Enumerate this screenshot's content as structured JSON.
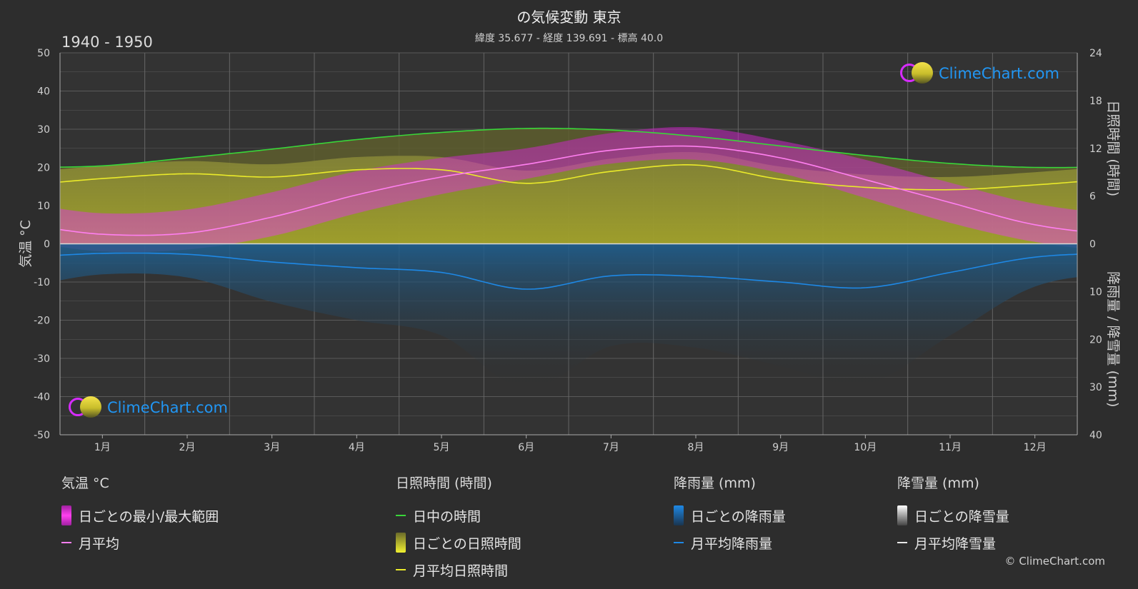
{
  "title": "の気候変動 東京",
  "subtitle": "緯度 35.677 - 経度 139.691 - 標高 40.0",
  "period": "1940 - 1950",
  "logo_text": "ClimeChart.com",
  "copyright": "© ClimeChart.com",
  "colors": {
    "background": "#2d2d2d",
    "temp_range": "#d633c8",
    "temp_avg": "#ff7ff0",
    "daylight": "#39d639",
    "sunshine_fill": "#a6a632",
    "sunshine_avg": "#eaea2a",
    "rain": "#1e88e5",
    "snow": "#dddddd"
  },
  "chart_data": {
    "type": "line",
    "x_categories": [
      "1月",
      "2月",
      "3月",
      "4月",
      "5月",
      "6月",
      "7月",
      "8月",
      "9月",
      "10月",
      "11月",
      "12月"
    ],
    "left_axis": {
      "label": "気温 °C",
      "range": [
        -50,
        50
      ],
      "ticks": [
        50,
        40,
        30,
        20,
        10,
        0,
        -10,
        -20,
        -30,
        -40,
        -50
      ]
    },
    "right_axis_top": {
      "label": "日照時間 (時間)",
      "range": [
        0,
        24
      ],
      "ticks": [
        24,
        18,
        12,
        6,
        0
      ]
    },
    "right_axis_bottom": {
      "label": "降雨量 / 降雪量 (mm)",
      "range": [
        0,
        40
      ],
      "ticks": [
        10,
        20,
        30,
        40
      ]
    },
    "grid": true,
    "series": [
      {
        "name": "月平均",
        "unit": "°C",
        "values": [
          2.5,
          2.8,
          7.0,
          12.8,
          17.5,
          20.8,
          24.5,
          25.5,
          22.5,
          16.8,
          10.8,
          5.0
        ]
      },
      {
        "name": "日中の時間",
        "unit": "時間",
        "values": [
          9.8,
          10.8,
          11.9,
          13.1,
          14.0,
          14.5,
          14.3,
          13.5,
          12.3,
          11.1,
          10.1,
          9.6
        ]
      },
      {
        "name": "月平均日照時間",
        "unit": "時間",
        "values": [
          8.2,
          8.8,
          8.4,
          9.3,
          9.3,
          7.6,
          9.1,
          9.9,
          8.1,
          7.1,
          6.8,
          7.4
        ]
      },
      {
        "name": "月平均降雨量",
        "unit": "mm",
        "values": [
          2.0,
          2.2,
          3.8,
          5.0,
          6.0,
          9.5,
          6.7,
          6.8,
          8.0,
          9.2,
          6.0,
          2.8
        ]
      },
      {
        "name": "日ごとの最小/最大範囲",
        "unit": "°C",
        "min": [
          -2.0,
          -1.5,
          2.0,
          8.0,
          13.0,
          17.0,
          21.0,
          22.0,
          18.5,
          12.0,
          5.5,
          0.5
        ],
        "max": [
          8.0,
          9.0,
          13.5,
          19.0,
          22.5,
          25.0,
          29.0,
          30.5,
          27.0,
          22.0,
          16.0,
          10.5
        ]
      }
    ]
  },
  "legend": {
    "temp": {
      "header": "気温 °C",
      "items": [
        "日ごとの最小/最大範囲",
        "月平均"
      ]
    },
    "sun": {
      "header": "日照時間 (時間)",
      "items": [
        "日中の時間",
        "日ごとの日照時間",
        "月平均日照時間"
      ]
    },
    "rain": {
      "header": "降雨量 (mm)",
      "items": [
        "日ごとの降雨量",
        "月平均降雨量"
      ]
    },
    "snow": {
      "header": "降雪量 (mm)",
      "items": [
        "日ごとの降雪量",
        "月平均降雪量"
      ]
    }
  }
}
